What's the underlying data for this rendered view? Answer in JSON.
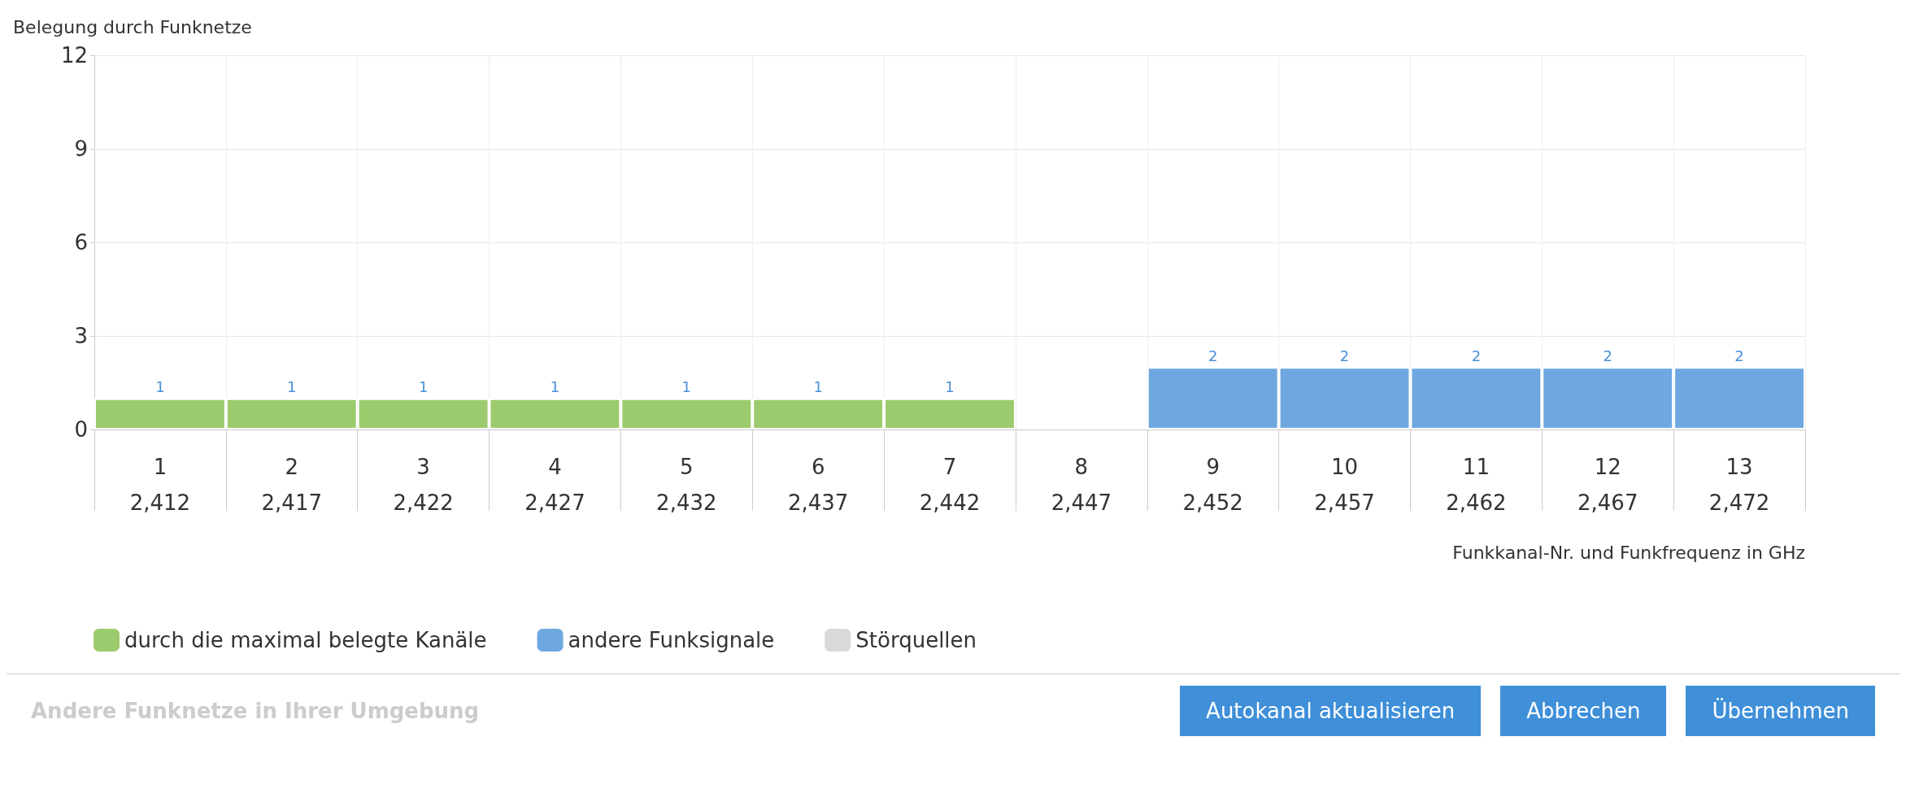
{
  "chart_data": {
    "type": "bar",
    "ylabel": "Belegung durch Funknetze",
    "xlabel": "Funkkanal-Nr. und Funkfrequenz in GHz",
    "categories": [
      "1\n2,412",
      "2\n2,417",
      "3\n2,422",
      "4\n2,427",
      "5\n2,432",
      "6\n2,437",
      "7\n2,442",
      "8\n2,447",
      "9\n2,452",
      "10\n2,457",
      "11\n2,462",
      "12\n2,467",
      "13\n2,472"
    ],
    "series": [
      {
        "name": "durch die maximal belegte Kanäle",
        "color": "#9ccb6e",
        "values": [
          1,
          1,
          1,
          1,
          1,
          1,
          1,
          null,
          null,
          null,
          null,
          null,
          null
        ]
      },
      {
        "name": "andere Funksignale",
        "color": "#6fa8e0",
        "values": [
          null,
          null,
          null,
          null,
          null,
          null,
          null,
          null,
          2,
          2,
          2,
          2,
          2
        ]
      },
      {
        "name": "Störquellen",
        "color": "#d9d9d9",
        "values": [
          null,
          null,
          null,
          null,
          null,
          null,
          null,
          null,
          null,
          null,
          null,
          null,
          null
        ]
      }
    ],
    "stacked": true,
    "data_labels": true,
    "ylim": [
      0,
      12
    ],
    "yticks": [
      0,
      3,
      6,
      9,
      12
    ],
    "grid": true,
    "legend": "bottom",
    "annotations": [
      "Andere Funknetze in Ihrer Umgebung",
      "Autokanal aktualisieren",
      "Abbrechen",
      "Übernehmen"
    ]
  }
}
